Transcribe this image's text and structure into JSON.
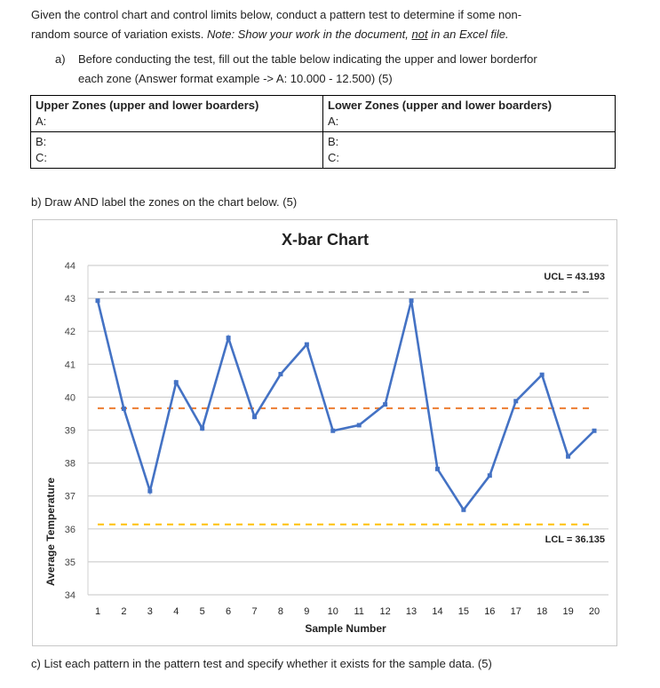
{
  "intro": {
    "line1": "Given the control chart and control limits below, conduct a pattern test to determine if some non-",
    "line2_plain": "random source of variation exists. ",
    "line2_italic_a": "Note: Show your work in the document, ",
    "line2_italic_underline": "not",
    "line2_italic_b": " in an Excel file."
  },
  "part_a": {
    "marker": "a)",
    "line1": "Before conducting the test, fill out the table below indicating the upper and lower borderfor",
    "line2": "each zone (Answer format example -> A: 10.000 - 12.500) (5)"
  },
  "zone_table": {
    "headers": [
      "Upper Zones (upper and lower boarders)",
      "Lower Zones (upper and lower boarders)"
    ],
    "upper": [
      "A:",
      "B:",
      "C:"
    ],
    "lower": [
      "A:",
      "B:",
      "C:"
    ]
  },
  "part_b": "b) Draw AND label the zones on the chart below. (5)",
  "part_c": "c) List each pattern in the pattern test and specify whether it exists for the sample data. (5)",
  "chart_data": {
    "type": "line",
    "title": "X-bar Chart",
    "xlabel": "Sample Number",
    "ylabel": "Average Temperature",
    "ylim": [
      34,
      44
    ],
    "yticks": [
      34,
      35,
      36,
      37,
      38,
      39,
      40,
      41,
      42,
      43,
      44
    ],
    "grid": true,
    "x": [
      1,
      2,
      3,
      4,
      5,
      6,
      7,
      8,
      9,
      10,
      11,
      12,
      13,
      14,
      15,
      16,
      17,
      18,
      19,
      20
    ],
    "values": [
      42.93,
      39.65,
      37.15,
      40.45,
      39.05,
      41.8,
      39.4,
      40.7,
      41.6,
      38.98,
      39.15,
      39.78,
      42.93,
      37.82,
      36.58,
      37.62,
      39.88,
      40.68,
      38.2,
      38.98
    ],
    "series_color": "#4472c4",
    "reference_lines": [
      {
        "label": "UCL = 43.193",
        "value": 43.193,
        "color": "#a5a5a5"
      },
      {
        "label": "",
        "value": 39.664,
        "color": "#ed7d31"
      },
      {
        "label": "LCL = 36.135",
        "value": 36.135,
        "color": "#ffc000"
      }
    ]
  }
}
